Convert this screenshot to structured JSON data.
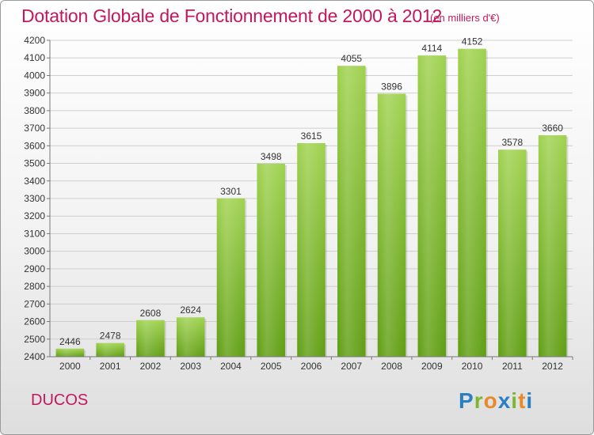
{
  "title": "Dotation Globale de Fonctionnement de 2000 à 2012",
  "units": "(en milliers d'€)",
  "commune": "DUCOS",
  "logo": {
    "letters": [
      "P",
      "r",
      "o",
      "x",
      "i",
      "t",
      "i"
    ],
    "colors": [
      "#2a7fc1",
      "#7cb82f",
      "#e8892a",
      "#2a7fc1",
      "#7cb82f",
      "#e8892a",
      "#2a7fc1"
    ]
  },
  "chart_data": {
    "type": "bar",
    "categories": [
      "2000",
      "2001",
      "2002",
      "2003",
      "2004",
      "2005",
      "2006",
      "2007",
      "2008",
      "2009",
      "2010",
      "2011",
      "2012"
    ],
    "values": [
      2446,
      2478,
      2608,
      2624,
      3301,
      3498,
      3615,
      4055,
      3896,
      4114,
      4152,
      3578,
      3660
    ],
    "title": "Dotation Globale de Fonctionnement de 2000 à 2012",
    "ylabel": "",
    "xlabel": "",
    "ylim": [
      2400,
      4200
    ],
    "yticks": [
      2400,
      2500,
      2600,
      2700,
      2800,
      2900,
      3000,
      3100,
      3200,
      3300,
      3400,
      3500,
      3600,
      3700,
      3800,
      3900,
      4000,
      4100,
      4200
    ],
    "grid": true,
    "bar_color": "#7cc02c"
  }
}
